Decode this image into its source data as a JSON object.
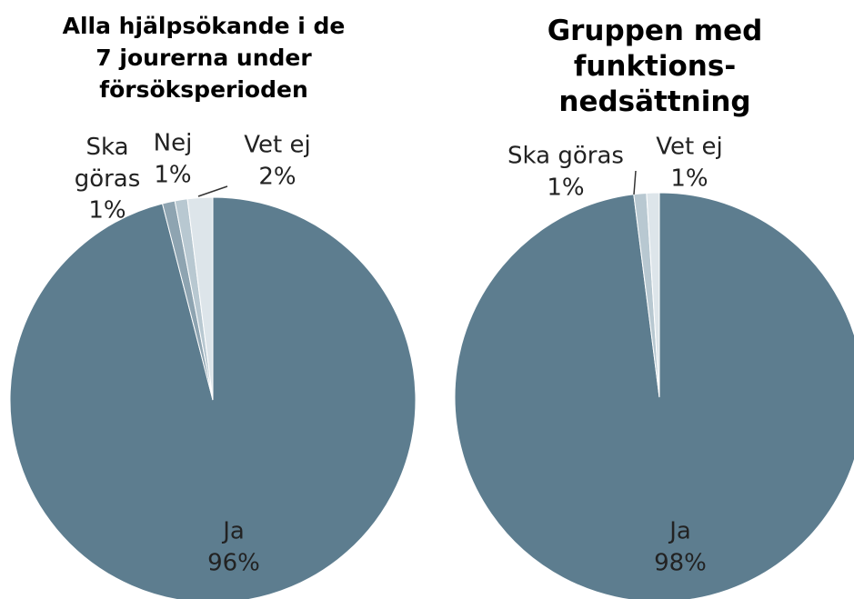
{
  "chart_data": [
    {
      "type": "pie",
      "title": "Alla hjälpsökande i de\n7 jourerna under\nförsöksperioden",
      "categories": [
        "Ja",
        "Ska\ngöras",
        "Nej",
        "Vet ej"
      ],
      "values": [
        96,
        1,
        1,
        2
      ],
      "value_labels": [
        "96%",
        "1%",
        "1%",
        "2%"
      ],
      "colors": [
        "#5d7d8f",
        "#8ea4b1",
        "#b8c8d1",
        "#dde5ea"
      ]
    },
    {
      "type": "pie",
      "title": "Gruppen med\nfunktions-\nnedsättning",
      "categories": [
        "Ja",
        "Ska göras",
        "Vet ej"
      ],
      "values": [
        98,
        1,
        1
      ],
      "value_labels": [
        "98%",
        "1%",
        "1%"
      ],
      "colors": [
        "#5d7d8f",
        "#b8c8d1",
        "#dde5ea"
      ]
    }
  ]
}
